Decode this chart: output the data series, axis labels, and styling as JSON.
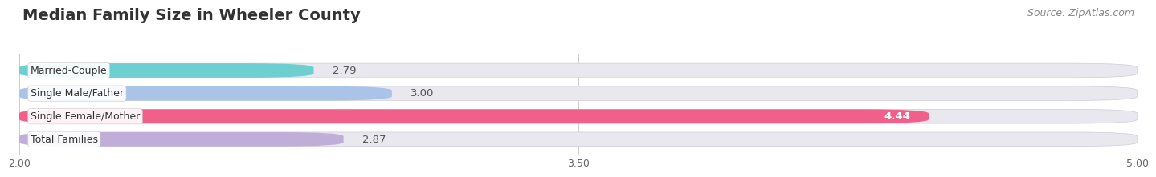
{
  "title": "Median Family Size in Wheeler County",
  "source": "Source: ZipAtlas.com",
  "categories": [
    "Married-Couple",
    "Single Male/Father",
    "Single Female/Mother",
    "Total Families"
  ],
  "values": [
    2.79,
    3.0,
    4.44,
    2.87
  ],
  "bar_colors": [
    "#6dcfcf",
    "#aac4e8",
    "#f0608a",
    "#c0aed8"
  ],
  "bar_track_color": "#e8e8ee",
  "bar_label_colors": [
    "#333333",
    "#333333",
    "#ffffff",
    "#333333"
  ],
  "xlim_data": [
    2.0,
    5.0
  ],
  "xticks": [
    2.0,
    3.5,
    5.0
  ],
  "xtick_labels": [
    "2.00",
    "3.50",
    "5.00"
  ],
  "background_color": "#ffffff",
  "bar_height": 0.62,
  "bar_gap": 0.38,
  "title_fontsize": 14,
  "label_fontsize": 9,
  "value_fontsize": 9.5,
  "source_fontsize": 9,
  "value_label_white": "#ffffff",
  "value_label_dark": "#555555"
}
